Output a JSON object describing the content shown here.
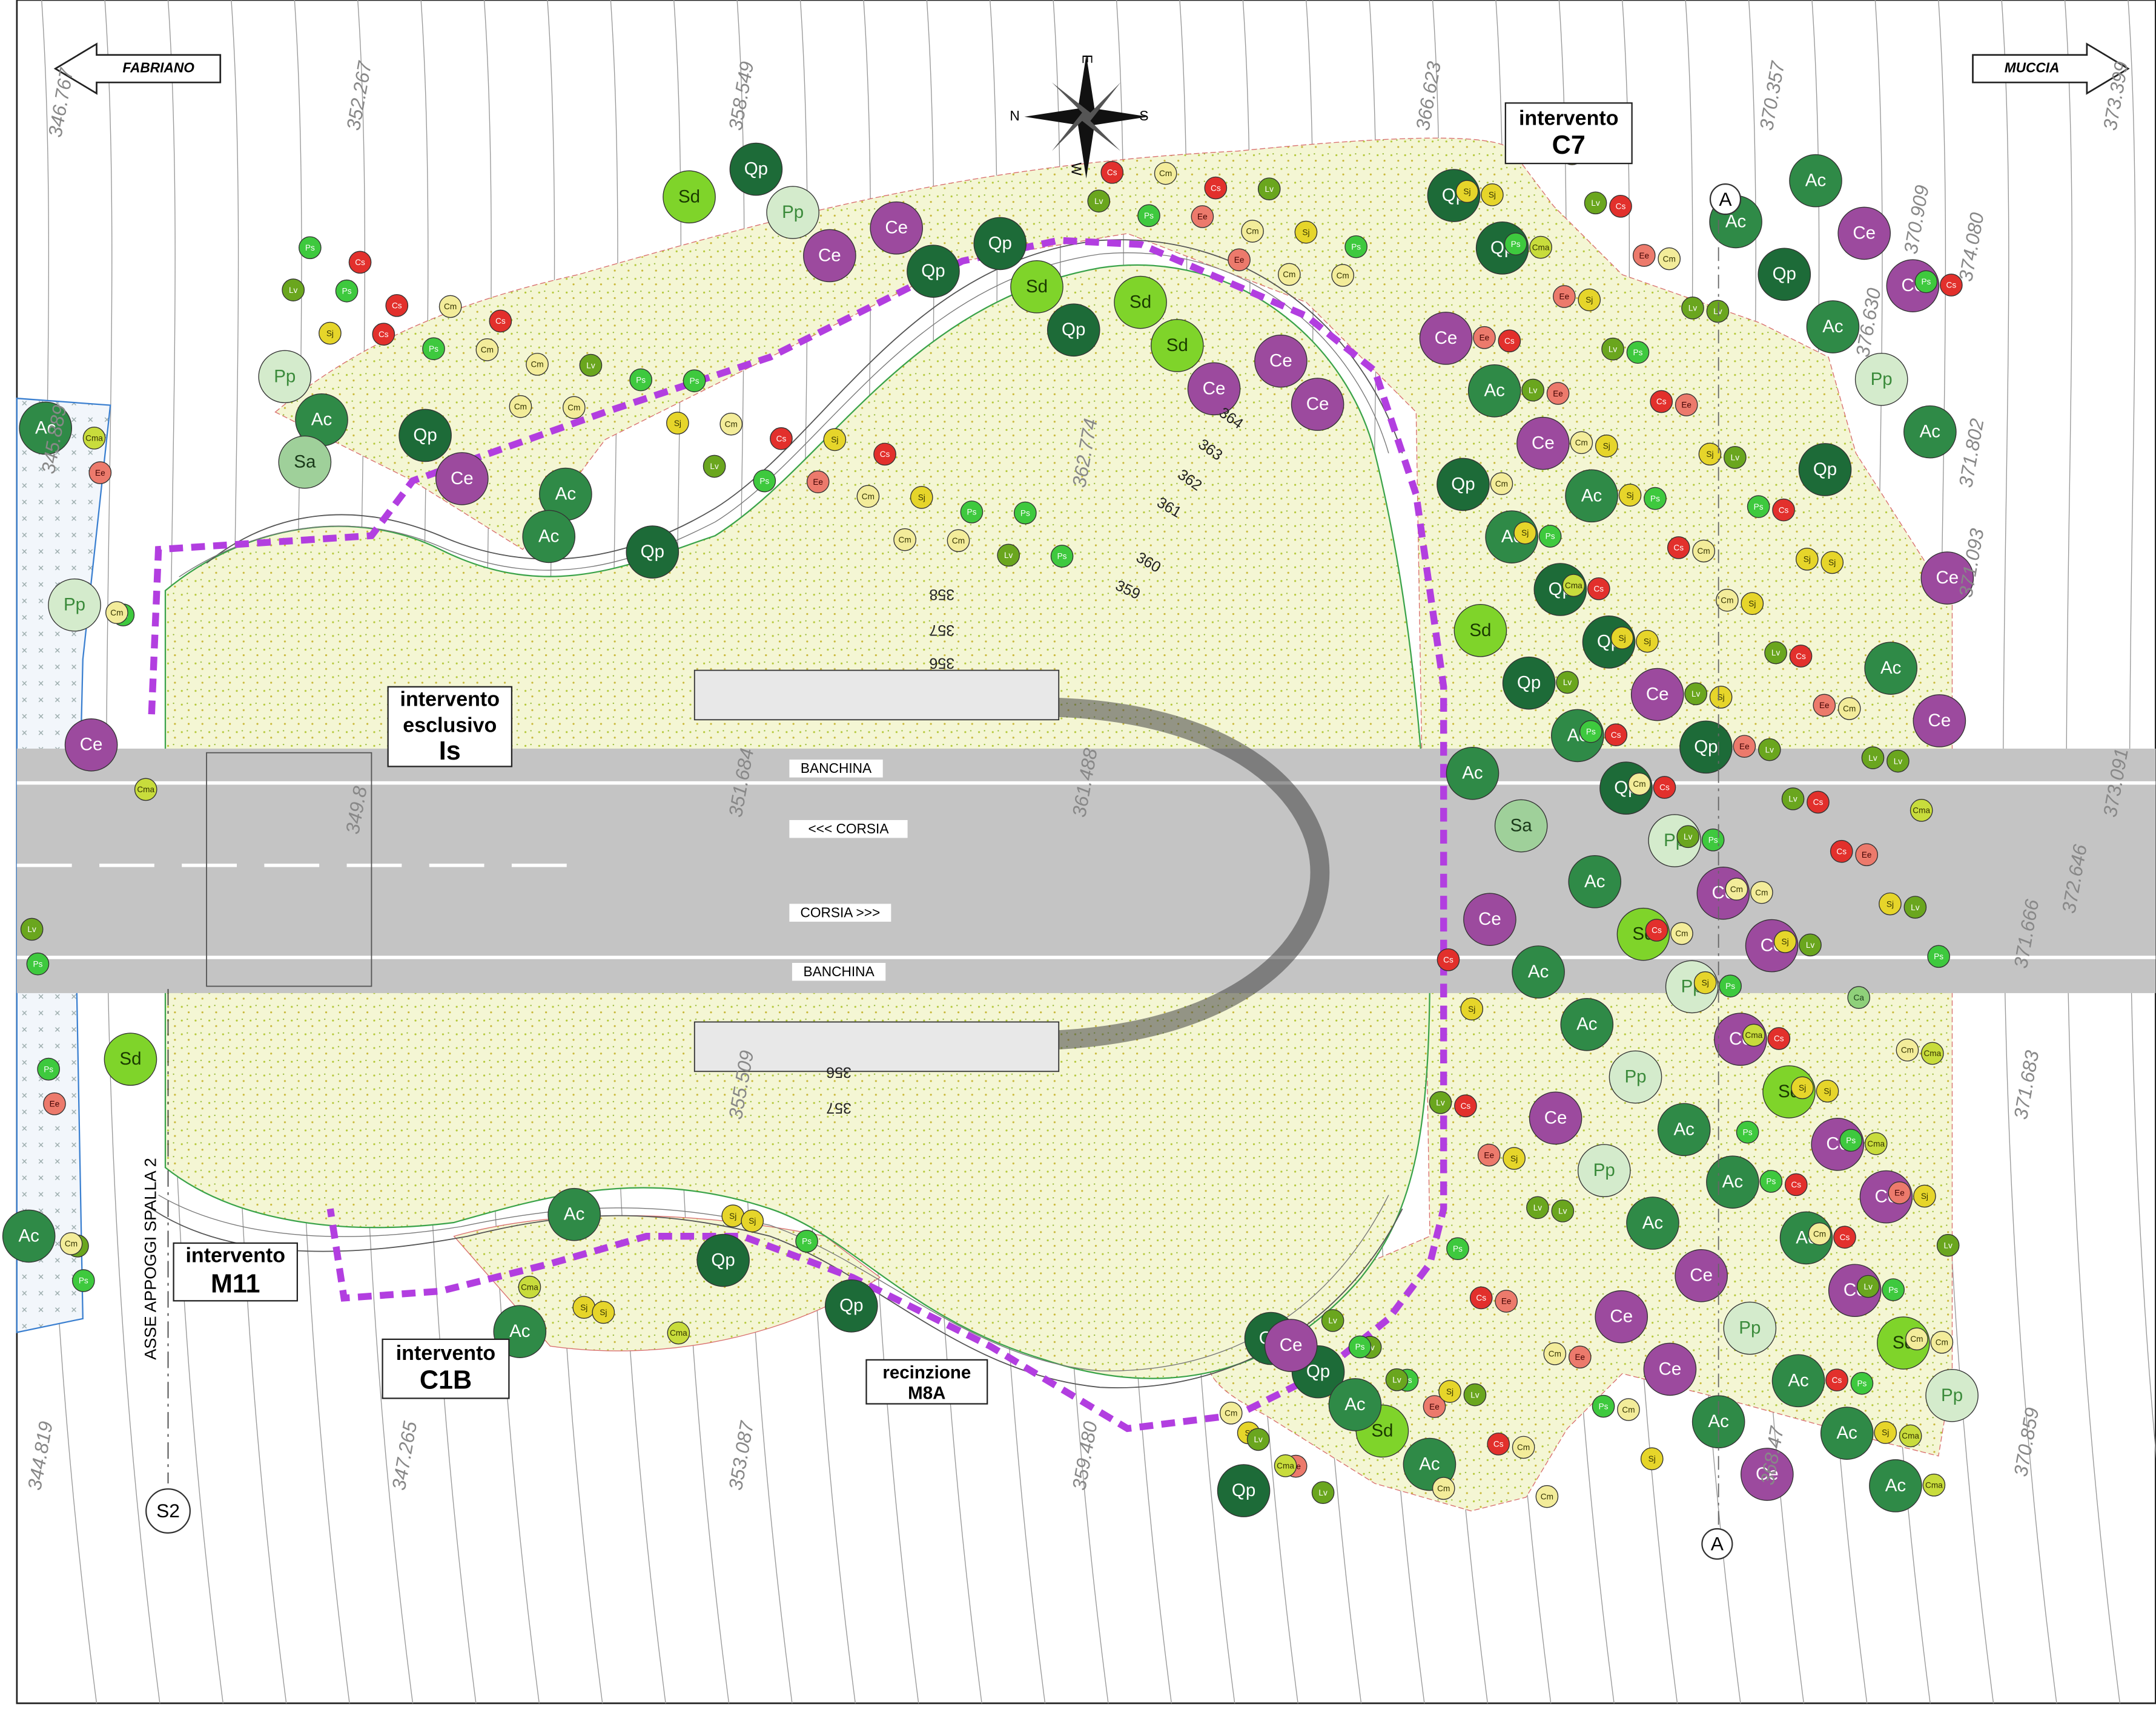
{
  "directions": {
    "left": "FABRIANO",
    "right": "MUCCIA"
  },
  "compass": {
    "north": "N",
    "south": "S",
    "east": "E",
    "west": "W"
  },
  "interventions": [
    {
      "line1": "intervento",
      "line2": "C7"
    },
    {
      "line1": "intervento",
      "line2": "esclusivo",
      "line3": "Is"
    },
    {
      "line1": "intervento",
      "line2": "M11"
    },
    {
      "line1": "intervento",
      "line2": "C1B"
    },
    {
      "line1": "recinzione",
      "line2": "M8A"
    }
  ],
  "road": {
    "shoulder_top": "BANCHINA",
    "lane_left": "<<< CORSIA",
    "lane_right": "CORSIA >>>",
    "shoulder_bottom": "BANCHINA"
  },
  "sections": {
    "top": "A",
    "bottom": "A",
    "pier": "S2"
  },
  "pier_axis": "ASSE APPOGGI SPALLA 2",
  "elevations": [
    "346.767",
    "352.267",
    "358.549",
    "366.623",
    "370.357",
    "373.399",
    "374.080",
    "370.909",
    "376.630",
    "371.802",
    "371.093",
    "373.091",
    "372.646",
    "371.666",
    "371.683",
    "370.859",
    "368.47",
    "359.480",
    "353.087",
    "347.265",
    "344.819",
    "345.889",
    "349.8",
    "351.684",
    "361.488",
    "355.509",
    "362.774"
  ],
  "contour_labels": [
    364,
    363,
    362,
    361,
    360,
    359,
    358,
    357,
    356,
    356,
    357
  ],
  "plant_styles": {
    "Qp": {
      "color": "#1d6b38",
      "text": "#ffffff",
      "size": "large"
    },
    "Ac": {
      "color": "#2f8a47",
      "text": "#ffffff",
      "size": "large"
    },
    "Ce": {
      "color": "#9c4a9e",
      "text": "#ffffff",
      "size": "large"
    },
    "Sd": {
      "color": "#7fd42a",
      "text": "#1a3a00",
      "size": "large"
    },
    "Pp": {
      "color": "#d4ebcc",
      "text": "#3a8a3a",
      "size": "large"
    },
    "Sa": {
      "color": "#9fd09a",
      "text": "#1a3a1a",
      "size": "large"
    },
    "Cs": {
      "color": "#e2302c",
      "text": "#ffffff",
      "size": "small"
    },
    "Ee": {
      "color": "#ec7a6c",
      "text": "#400000",
      "size": "small"
    },
    "Cm": {
      "color": "#f3ec9a",
      "text": "#333300",
      "size": "small"
    },
    "Sj": {
      "color": "#e6d52a",
      "text": "#333300",
      "size": "small"
    },
    "Lv": {
      "color": "#6aa61e",
      "text": "#ffffff",
      "size": "small"
    },
    "Ps": {
      "color": "#3ec93e",
      "text": "#ffffff",
      "size": "small"
    },
    "Cma": {
      "color": "#c8dc3c",
      "text": "#333300",
      "size": "small"
    },
    "Ca": {
      "color": "#8fd07a",
      "text": "#1a3a1a",
      "size": "small"
    }
  },
  "plants": [
    "Qp",
    "Ce",
    "Ac",
    "Qp",
    "Ac",
    "Ac",
    "Ce",
    "Ce",
    "Qp",
    "Ac",
    "Sd",
    "Ce",
    "Qp",
    "Ce",
    "Ce",
    "Sd",
    "Qp",
    "Ce",
    "Pp",
    "Qp",
    "Ac",
    "Sd",
    "Ac",
    "Qp",
    "Ce",
    "Ce",
    "Ce",
    "Qp",
    "Pp",
    "Pp",
    "Qp",
    "Ac",
    "Pp",
    "Ac",
    "Sd",
    "Sd",
    "Ac",
    "Qp",
    "Ce",
    "Qp",
    "Ce",
    "Ce",
    "Ce",
    "Ce",
    "Qp",
    "Ac",
    "Pp",
    "Pp",
    "Qp",
    "Ac",
    "Ce",
    "Pp",
    "Ac",
    "Ac",
    "Ac",
    "Ce",
    "Sd",
    "Ce",
    "Ac",
    "Ce",
    "Qp",
    "Sd",
    "Ce",
    "Ce",
    "Sd",
    "Ce",
    "Ac",
    "Ac",
    "Qp",
    "Pp",
    "Pp",
    "Sd",
    "Ac",
    "Ce",
    "Ac",
    "Ac",
    "Ce",
    "Ce",
    "Ac",
    "Sd",
    "Ce",
    "Ac",
    "Ac",
    "Pp",
    "Qp",
    "Qp",
    "Ac",
    "Qp",
    "Ac",
    "Ce",
    "Qp",
    "Ac",
    "Ac",
    "Qp",
    "Ac",
    "Sa",
    "Sa",
    "Ac",
    "Qp",
    "Ac",
    "Cs",
    "Ee",
    "Cm",
    "Sj",
    "Lv",
    "Ps",
    "Cma",
    "Cs",
    "Ee",
    "Cm",
    "Sj",
    "Lv",
    "Ps",
    "Cma",
    "Cs",
    "Cm",
    "Sj",
    "Lv",
    "Ps",
    "Cs",
    "Ee",
    "Cm",
    "Sj",
    "Lv",
    "Ps",
    "Cma",
    "Cs",
    "Ee",
    "Cm",
    "Sj",
    "Lv",
    "Ps",
    "Cm",
    "Sj",
    "Cs",
    "Lv",
    "Ps",
    "Cma",
    "Ee",
    "Cm",
    "Sj",
    "Lv",
    "Ps",
    "Cs",
    "Cm",
    "Sj",
    "Lv",
    "Ps",
    "Cs",
    "Ee",
    "Cm",
    "Sj",
    "Lv",
    "Ps",
    "Cma",
    "Cs",
    "Cm",
    "Sj",
    "Lv",
    "Ps",
    "Cs",
    "Ee",
    "Cm",
    "Sj",
    "Lv",
    "Ps",
    "Cm",
    "Sj",
    "Cs",
    "Lv",
    "Ps",
    "Cma",
    "Ee",
    "Cm",
    "Sj",
    "Lv",
    "Ps",
    "Cs",
    "Cm",
    "Sj",
    "Lv",
    "Ps",
    "Cs",
    "Ee",
    "Cm",
    "Sj",
    "Lv",
    "Ps",
    "Cma",
    "Cs",
    "Cm",
    "Sj",
    "Lv",
    "Ps",
    "Cs",
    "Ee",
    "Cm",
    "Sj",
    "Lv",
    "Ps",
    "Ca",
    "Cma",
    "Ee",
    "Cm",
    "Sj",
    "Lv",
    "Ps",
    "Cs",
    "Cm",
    "Sj",
    "Lv",
    "Ps",
    "Cs",
    "Ee",
    "Cm",
    "Sj",
    "Lv",
    "Ps",
    "Cm",
    "Sj",
    "Cs",
    "Lv",
    "Ps",
    "Cma",
    "Ee",
    "Cm",
    "Sj",
    "Lv",
    "Ps",
    "Cs",
    "Cm",
    "Sj",
    "Lv",
    "Ps",
    "Cs",
    "Ee",
    "Cm",
    "Sj",
    "Lv",
    "Ps",
    "Cma",
    "Cs",
    "Cm",
    "Sj",
    "Lv",
    "Ps",
    "Cs",
    "Ee",
    "Cm",
    "Sj",
    "Lv",
    "Ps",
    "Cm",
    "Sj",
    "Cs",
    "Lv",
    "Ps",
    "Cma",
    "Ee",
    "Cm",
    "Sj",
    "Lv",
    "Ps",
    "Cs",
    "Cm",
    "Sj",
    "Lv",
    "Ps",
    "Cs",
    "Ee",
    "Cm",
    "Sj",
    "Lv",
    "Ps",
    "Cma",
    "Cs",
    "Cm",
    "Sj",
    "Lv",
    "Ps",
    "Cs",
    "Ee",
    "Cm",
    "Sj",
    "Lv",
    "Ps",
    "Cm",
    "Sj",
    "Cs",
    "Lv",
    "Ps",
    "Cma",
    "Ee",
    "Cm",
    "Sj",
    "Lv",
    "Ps",
    "Cs",
    "Cm",
    "Sj",
    "Lv",
    "Ps"
  ]
}
